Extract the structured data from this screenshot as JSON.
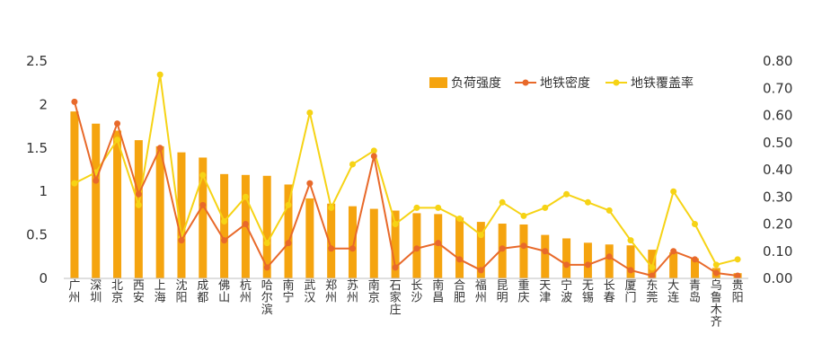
{
  "chart_data": {
    "type": "bar",
    "title": "",
    "xlabel": "",
    "ylabel": "",
    "y2label": "",
    "ylim": [
      0,
      2.5
    ],
    "y2lim": [
      0,
      0.8
    ],
    "yticks": [
      "0",
      "0.5",
      "1",
      "1.5",
      "2",
      "2.5"
    ],
    "y2ticks": [
      "0.00",
      "0.10",
      "0.20",
      "0.30",
      "0.40",
      "0.50",
      "0.60",
      "0.70",
      "0.80"
    ],
    "grid": false,
    "legend_position": "top-right",
    "categories": [
      "广州",
      "深圳",
      "北京",
      "西安",
      "上海",
      "沈阳",
      "成都",
      "佛山",
      "杭州",
      "哈尔滨",
      "南宁",
      "武汉",
      "郑州",
      "苏州",
      "南京",
      "石家庄",
      "长沙",
      "南昌",
      "合肥",
      "福州",
      "昆明",
      "重庆",
      "天津",
      "宁波",
      "无锡",
      "长春",
      "厦门",
      "东莞",
      "大连",
      "青岛",
      "乌鲁木齐",
      "贵阳"
    ],
    "series": [
      {
        "name": "负荷强度",
        "type": "bar",
        "axis": "left",
        "color": "#F5A40F",
        "values": [
          1.92,
          1.78,
          1.7,
          1.59,
          1.52,
          1.45,
          1.39,
          1.2,
          1.19,
          1.18,
          1.08,
          0.92,
          0.86,
          0.83,
          0.8,
          0.78,
          0.75,
          0.74,
          0.7,
          0.65,
          0.63,
          0.62,
          0.5,
          0.46,
          0.41,
          0.39,
          0.38,
          0.33,
          0.3,
          0.23,
          0.12,
          0.06
        ]
      },
      {
        "name": "地铁密度",
        "type": "line",
        "axis": "right",
        "color": "#E8692A",
        "values": [
          0.65,
          0.36,
          0.57,
          0.31,
          0.48,
          0.14,
          0.27,
          0.14,
          0.2,
          0.04,
          0.13,
          0.35,
          0.11,
          0.11,
          0.45,
          0.04,
          0.11,
          0.13,
          0.07,
          0.03,
          0.11,
          0.12,
          0.1,
          0.05,
          0.05,
          0.08,
          0.03,
          0.01,
          0.1,
          0.07,
          0.02,
          0.01
        ]
      },
      {
        "name": "地铁覆盖率",
        "type": "line",
        "axis": "right",
        "color": "#F6D315",
        "values": [
          0.35,
          0.39,
          0.51,
          0.27,
          0.75,
          0.15,
          0.38,
          0.21,
          0.3,
          0.13,
          0.27,
          0.61,
          0.26,
          0.42,
          0.47,
          0.2,
          0.26,
          0.26,
          0.22,
          0.16,
          0.28,
          0.23,
          0.26,
          0.31,
          0.28,
          0.25,
          0.14,
          0.04,
          0.32,
          0.2,
          0.05,
          0.07
        ]
      }
    ]
  }
}
